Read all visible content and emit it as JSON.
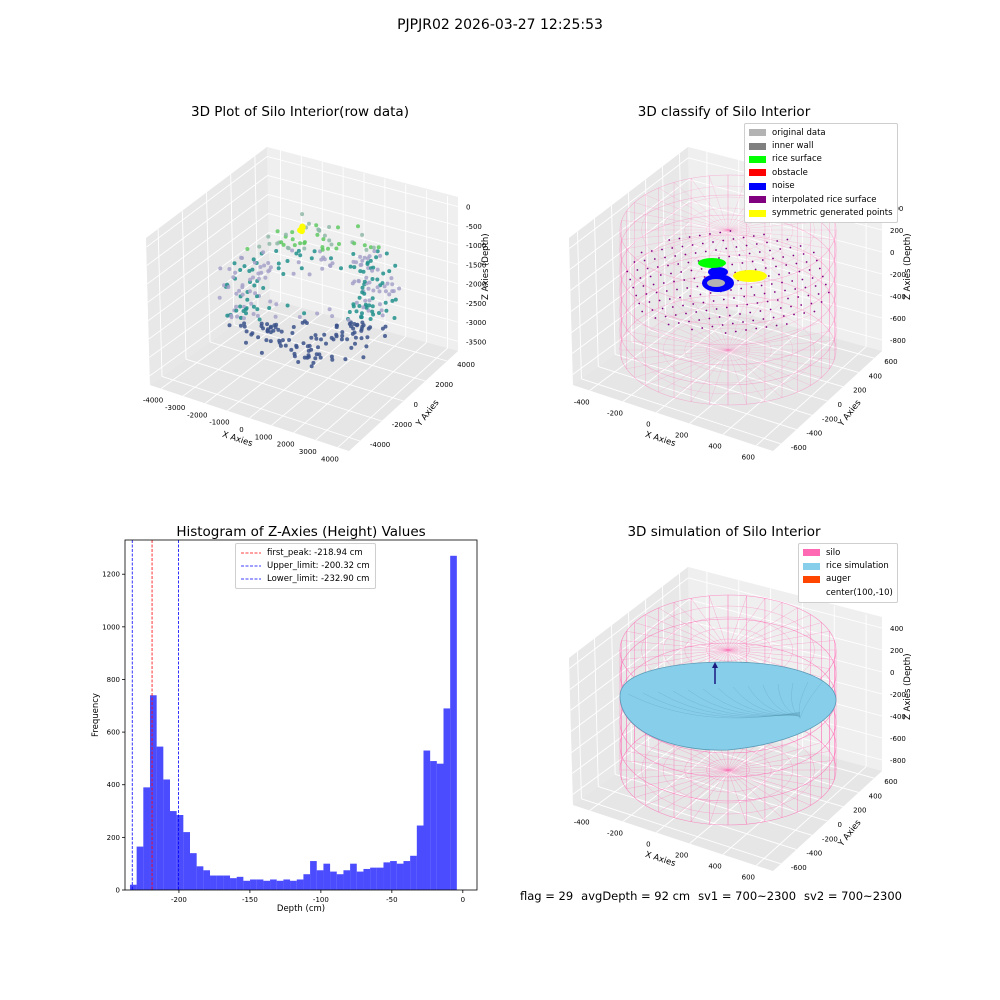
{
  "suptitle": "PJPJR02 2026-03-27 12:25:53",
  "panels": {
    "tl": {
      "title": "3D Plot of Silo Interior(row data)"
    },
    "tr": {
      "title": "3D classify of Silo Interior"
    },
    "bl": {
      "title": "Histogram of Z-Axies (Height) Values"
    },
    "br": {
      "title": "3D simulation of Silo Interior"
    }
  },
  "legend_classify": [
    {
      "label": "original data",
      "color": "#b3b3b3"
    },
    {
      "label": "inner wall",
      "color": "#808080"
    },
    {
      "label": "rice surface",
      "color": "#00ff00"
    },
    {
      "label": "obstacle",
      "color": "#ff0000"
    },
    {
      "label": "noise",
      "color": "#0000ff"
    },
    {
      "label": "interpolated rice surface",
      "color": "#800080"
    },
    {
      "label": "symmetric generated points",
      "color": "#ffff00"
    }
  ],
  "legend_sim": [
    {
      "label": "silo",
      "color": "#ff69b4"
    },
    {
      "label": "rice simulation",
      "color": "#87ceeb"
    },
    {
      "label": "auger",
      "color": "#ff4500"
    },
    {
      "label": "center(100,-10)",
      "color": "#ffffff"
    }
  ],
  "stats": {
    "flag": "flag = 29",
    "avg": "avgDepth = 92 cm",
    "sv1": "sv1 = 700~2300",
    "sv2": "sv2 = 700~2300"
  },
  "axes_tl": {
    "x_label": "X Axies",
    "y_label": "Y Axies",
    "z_label": "Z Axies (Depth)",
    "x_ticks": [
      "-4000",
      "-3000",
      "-2000",
      "-1000",
      "0",
      "1000",
      "2000",
      "3000",
      "4000"
    ],
    "y_ticks": [
      "-4000",
      "-2000",
      "0",
      "2000",
      "4000"
    ],
    "z_ticks": [
      "0",
      "-500",
      "-1000",
      "-1500",
      "-2000",
      "-2500",
      "-3000",
      "-3500"
    ]
  },
  "axes_tr": {
    "x_label": "X Axies",
    "y_label": "Y Axies",
    "z_label": "Z Axies (Depth)",
    "x_ticks": [
      "-400",
      "-200",
      "0",
      "200",
      "400",
      "600"
    ],
    "y_ticks": [
      "-600",
      "-400",
      "-200",
      "0",
      "200",
      "400",
      "600"
    ],
    "z_ticks": [
      "400",
      "200",
      "0",
      "-200",
      "-400",
      "-600",
      "-800"
    ]
  },
  "axes_br": {
    "x_label": "X Axies",
    "y_label": "Y Axies",
    "z_label": "Z Axies (Depth)",
    "x_ticks": [
      "-400",
      "-200",
      "0",
      "200",
      "400",
      "600"
    ],
    "y_ticks": [
      "-600",
      "-400",
      "-200",
      "0",
      "200",
      "400",
      "600"
    ],
    "z_ticks": [
      "400",
      "200",
      "0",
      "-200",
      "-400",
      "-600",
      "-800"
    ]
  },
  "chart_data": [
    {
      "type": "bar",
      "title": "Histogram of Z-Axies (Height) Values",
      "xlabel": "Depth (cm)",
      "ylabel": "Frequency",
      "xlim": [
        -238,
        10
      ],
      "ylim": [
        0,
        1330
      ],
      "x_ticks": [
        "-200",
        "-150",
        "-100",
        "-50",
        "0"
      ],
      "y_ticks": [
        "0",
        "200",
        "400",
        "600",
        "800",
        "1000",
        "1200"
      ],
      "bar_color": "#0000ff",
      "bin_start": -234.5,
      "bin_width": 4.7,
      "values": [
        20,
        165,
        390,
        740,
        545,
        420,
        300,
        285,
        220,
        140,
        90,
        75,
        55,
        55,
        55,
        45,
        50,
        35,
        40,
        40,
        35,
        40,
        35,
        40,
        35,
        40,
        60,
        110,
        75,
        100,
        70,
        60,
        75,
        100,
        70,
        80,
        85,
        85,
        105,
        110,
        100,
        110,
        130,
        245,
        530,
        490,
        480,
        690,
        1270
      ],
      "vlines": [
        {
          "x": -218.94,
          "color": "#ff0000",
          "label": "first_peak: -218.94 cm"
        },
        {
          "x": -200.32,
          "color": "#0000ff",
          "label": "Upper_limit: -200.32 cm"
        },
        {
          "x": -232.9,
          "color": "#0000ff",
          "label": "Lower_limit: -232.90 cm"
        }
      ]
    },
    {
      "type": "scatter",
      "title": "3D Plot of Silo Interior(row data)",
      "xlabel": "X Axies",
      "ylabel": "Y Axies",
      "zlabel": "Z Axies (Depth)",
      "xlim": [
        -4000,
        4000
      ],
      "ylim": [
        -4000,
        4000
      ],
      "zlim": [
        -3800,
        200
      ]
    }
  ]
}
